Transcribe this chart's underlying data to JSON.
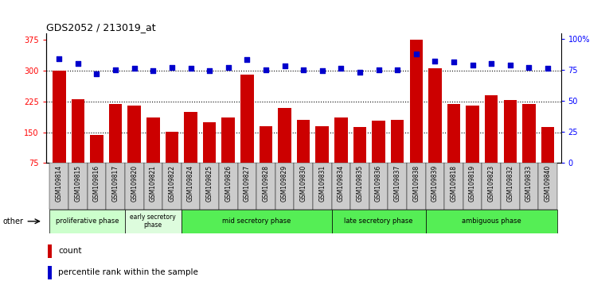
{
  "title": "GDS2052 / 213019_at",
  "samples": [
    "GSM109814",
    "GSM109815",
    "GSM109816",
    "GSM109817",
    "GSM109820",
    "GSM109821",
    "GSM109822",
    "GSM109824",
    "GSM109825",
    "GSM109826",
    "GSM109827",
    "GSM109828",
    "GSM109829",
    "GSM109830",
    "GSM109831",
    "GSM109834",
    "GSM109835",
    "GSM109836",
    "GSM109837",
    "GSM109838",
    "GSM109839",
    "GSM109818",
    "GSM109819",
    "GSM109823",
    "GSM109832",
    "GSM109833",
    "GSM109840"
  ],
  "counts": [
    300,
    230,
    143,
    218,
    215,
    185,
    152,
    200,
    175,
    185,
    290,
    165,
    210,
    180,
    165,
    185,
    162,
    178,
    180,
    375,
    305,
    218,
    215,
    240,
    228,
    218,
    162
  ],
  "percentiles": [
    84,
    80,
    72,
    75,
    76,
    74,
    77,
    76,
    74,
    77,
    83,
    75,
    78,
    75,
    74,
    76,
    73,
    75,
    75,
    88,
    82,
    81,
    79,
    80,
    79,
    77,
    76
  ],
  "phases": [
    {
      "name": "proliferative phase",
      "start": 0,
      "end": 4,
      "color": "#ccffcc",
      "text_size": 6
    },
    {
      "name": "early secretory\nphase",
      "start": 4,
      "end": 7,
      "color": "#ddfcdd",
      "text_size": 5.5
    },
    {
      "name": "mid secretory phase",
      "start": 7,
      "end": 15,
      "color": "#55ee55",
      "text_size": 6
    },
    {
      "name": "late secretory phase",
      "start": 15,
      "end": 20,
      "color": "#55ee55",
      "text_size": 6
    },
    {
      "name": "ambiguous phase",
      "start": 20,
      "end": 27,
      "color": "#55ee55",
      "text_size": 6
    }
  ],
  "ylim_left": [
    75,
    390
  ],
  "ylim_right": [
    0,
    104
  ],
  "yticks_left": [
    75,
    150,
    225,
    300,
    375
  ],
  "yticks_right": [
    0,
    25,
    50,
    75,
    100
  ],
  "bar_color": "#cc0000",
  "dot_color": "#0000cc",
  "plot_bg": "#ffffff",
  "gridline_values": [
    150,
    225,
    300
  ],
  "other_label": "other"
}
